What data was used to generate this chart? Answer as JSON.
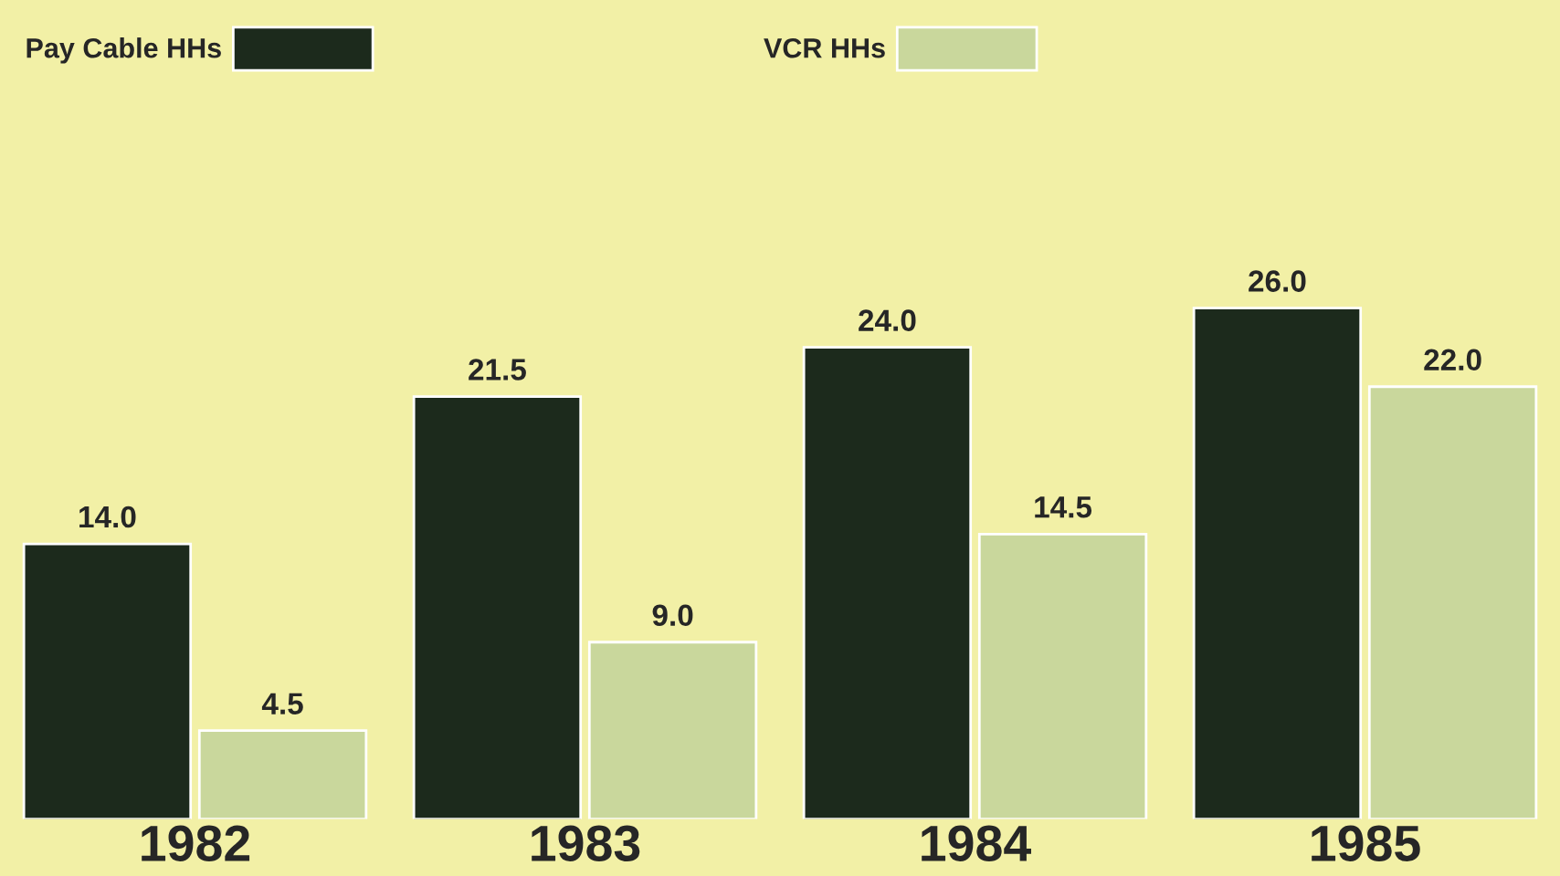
{
  "chart_data": {
    "type": "bar",
    "categories": [
      "1982",
      "1983",
      "1984",
      "1985"
    ],
    "series": [
      {
        "name": "Pay Cable HHs",
        "color": "#1c2a1c",
        "values": [
          14,
          21.5,
          24,
          26
        ],
        "value_labels": [
          "14.0",
          "21.5",
          "24.0",
          "26.0"
        ]
      },
      {
        "name": "VCR HHs",
        "color": "#c9d79c",
        "values": [
          4.5,
          9,
          14.5,
          22
        ],
        "value_labels": [
          "4.5",
          "9.0",
          "14.5",
          "22.0"
        ]
      }
    ],
    "legend": "top left",
    "grid": false
  }
}
